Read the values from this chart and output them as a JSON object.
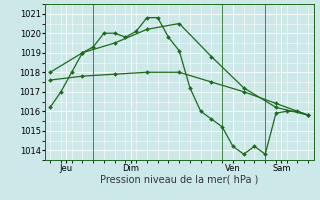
{
  "background_color": "#cce8e8",
  "grid_color": "#ffffff",
  "line_color": "#1a6b1a",
  "xlabel": "Pression niveau de la mer( hPa )",
  "ylim": [
    1013.5,
    1021.5
  ],
  "yticks": [
    1014,
    1015,
    1016,
    1017,
    1018,
    1019,
    1020,
    1021
  ],
  "series1_x": [
    0,
    1,
    2,
    3,
    4,
    5,
    6,
    7,
    8,
    9,
    10,
    11,
    12,
    13,
    14,
    15,
    16,
    17,
    18,
    19,
    20,
    21,
    22,
    23,
    24
  ],
  "series1_y": [
    1016.2,
    1017.0,
    1018.0,
    1019.0,
    1019.3,
    1020.0,
    1020.0,
    1019.8,
    1020.1,
    1020.8,
    1020.8,
    1019.8,
    1019.1,
    1017.2,
    1016.0,
    1015.6,
    1015.2,
    1014.2,
    1013.8,
    1014.2,
    1013.8,
    1015.9,
    1016.0,
    1016.0,
    1015.8
  ],
  "series2_x": [
    0,
    3,
    6,
    9,
    12,
    15,
    18,
    21,
    24
  ],
  "series2_y": [
    1018.0,
    1019.0,
    1019.5,
    1020.2,
    1020.5,
    1018.8,
    1017.2,
    1016.2,
    1015.8
  ],
  "series3_x": [
    0,
    3,
    6,
    9,
    12,
    15,
    18,
    21,
    24
  ],
  "series3_y": [
    1017.6,
    1017.8,
    1017.9,
    1018.0,
    1018.0,
    1017.5,
    1017.0,
    1016.4,
    1015.8
  ],
  "vlines_x": [
    4,
    16,
    20
  ],
  "xtick_positions": [
    1.5,
    7.5,
    17.0,
    21.5
  ],
  "xtick_labels": [
    "Jeu",
    "Dim",
    "Ven",
    "Sam"
  ]
}
